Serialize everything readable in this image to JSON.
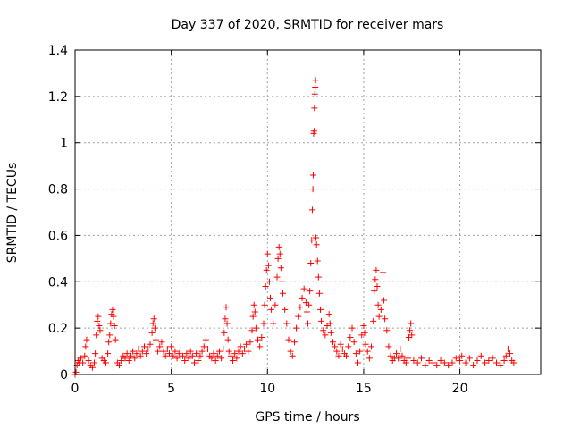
{
  "chart_data": {
    "type": "scatter",
    "title": "Day 337 of 2020, SRMTID for receiver mars",
    "xlabel": "GPS time / hours",
    "ylabel": "SRMTID / TECUs",
    "xlim": [
      0,
      24.2
    ],
    "ylim": [
      0,
      1.4
    ],
    "grid": true,
    "marker": "+",
    "marker_color": "#ff0000",
    "x_ticks": [
      0,
      5,
      10,
      15,
      20
    ],
    "y_ticks": [
      0,
      0.2,
      0.4,
      0.6,
      0.8,
      1,
      1.2,
      1.4
    ],
    "x_tick_labels": [
      "0",
      "5",
      "10",
      "15",
      "20"
    ],
    "y_tick_labels": [
      "0",
      "0.2",
      "0.4",
      "0.6",
      "0.8",
      "1",
      "1.2",
      "1.4"
    ],
    "series": [
      {
        "name": "SRMTID",
        "points": [
          [
            0.0,
            0.0
          ],
          [
            0.05,
            0.01
          ],
          [
            0.1,
            0.04
          ],
          [
            0.15,
            0.06
          ],
          [
            0.2,
            0.05
          ],
          [
            0.3,
            0.07
          ],
          [
            0.4,
            0.05
          ],
          [
            0.5,
            0.08
          ],
          [
            0.55,
            0.12
          ],
          [
            0.6,
            0.15
          ],
          [
            0.7,
            0.06
          ],
          [
            0.8,
            0.04
          ],
          [
            0.9,
            0.03
          ],
          [
            1.0,
            0.05
          ],
          [
            1.05,
            0.09
          ],
          [
            1.1,
            0.17
          ],
          [
            1.15,
            0.23
          ],
          [
            1.2,
            0.25
          ],
          [
            1.25,
            0.21
          ],
          [
            1.3,
            0.19
          ],
          [
            1.4,
            0.07
          ],
          [
            1.5,
            0.06
          ],
          [
            1.6,
            0.05
          ],
          [
            1.7,
            0.09
          ],
          [
            1.75,
            0.14
          ],
          [
            1.8,
            0.17
          ],
          [
            1.85,
            0.22
          ],
          [
            1.9,
            0.26
          ],
          [
            1.95,
            0.28
          ],
          [
            2.0,
            0.25
          ],
          [
            2.05,
            0.21
          ],
          [
            2.1,
            0.15
          ],
          [
            2.2,
            0.05
          ],
          [
            2.3,
            0.04
          ],
          [
            2.4,
            0.06
          ],
          [
            2.5,
            0.08
          ],
          [
            2.6,
            0.07
          ],
          [
            2.7,
            0.09
          ],
          [
            2.8,
            0.06
          ],
          [
            2.9,
            0.08
          ],
          [
            3.0,
            0.1
          ],
          [
            3.1,
            0.07
          ],
          [
            3.2,
            0.09
          ],
          [
            3.3,
            0.11
          ],
          [
            3.4,
            0.08
          ],
          [
            3.5,
            0.1
          ],
          [
            3.6,
            0.12
          ],
          [
            3.7,
            0.09
          ],
          [
            3.8,
            0.11
          ],
          [
            3.9,
            0.13
          ],
          [
            4.0,
            0.18
          ],
          [
            4.05,
            0.22
          ],
          [
            4.1,
            0.24
          ],
          [
            4.15,
            0.2
          ],
          [
            4.2,
            0.15
          ],
          [
            4.3,
            0.1
          ],
          [
            4.4,
            0.12
          ],
          [
            4.5,
            0.14
          ],
          [
            4.6,
            0.1
          ],
          [
            4.7,
            0.08
          ],
          [
            4.8,
            0.11
          ],
          [
            4.9,
            0.09
          ],
          [
            5.0,
            0.12
          ],
          [
            5.1,
            0.08
          ],
          [
            5.2,
            0.1
          ],
          [
            5.3,
            0.07
          ],
          [
            5.4,
            0.09
          ],
          [
            5.5,
            0.11
          ],
          [
            5.6,
            0.08
          ],
          [
            5.7,
            0.06
          ],
          [
            5.8,
            0.09
          ],
          [
            5.9,
            0.07
          ],
          [
            6.0,
            0.1
          ],
          [
            6.1,
            0.08
          ],
          [
            6.2,
            0.05
          ],
          [
            6.3,
            0.09
          ],
          [
            6.4,
            0.06
          ],
          [
            6.5,
            0.08
          ],
          [
            6.6,
            0.1
          ],
          [
            6.7,
            0.12
          ],
          [
            6.8,
            0.15
          ],
          [
            6.9,
            0.11
          ],
          [
            7.0,
            0.08
          ],
          [
            7.1,
            0.07
          ],
          [
            7.2,
            0.09
          ],
          [
            7.3,
            0.06
          ],
          [
            7.4,
            0.08
          ],
          [
            7.5,
            0.1
          ],
          [
            7.6,
            0.07
          ],
          [
            7.7,
            0.11
          ],
          [
            7.75,
            0.18
          ],
          [
            7.8,
            0.24
          ],
          [
            7.85,
            0.29
          ],
          [
            7.9,
            0.22
          ],
          [
            7.95,
            0.15
          ],
          [
            8.0,
            0.1
          ],
          [
            8.1,
            0.08
          ],
          [
            8.2,
            0.06
          ],
          [
            8.3,
            0.09
          ],
          [
            8.4,
            0.07
          ],
          [
            8.5,
            0.1
          ],
          [
            8.6,
            0.12
          ],
          [
            8.7,
            0.09
          ],
          [
            8.8,
            0.11
          ],
          [
            8.9,
            0.13
          ],
          [
            9.0,
            0.1
          ],
          [
            9.1,
            0.14
          ],
          [
            9.2,
            0.19
          ],
          [
            9.25,
            0.25
          ],
          [
            9.3,
            0.3
          ],
          [
            9.35,
            0.27
          ],
          [
            9.4,
            0.2
          ],
          [
            9.5,
            0.15
          ],
          [
            9.6,
            0.12
          ],
          [
            9.7,
            0.16
          ],
          [
            9.8,
            0.22
          ],
          [
            9.85,
            0.3
          ],
          [
            9.9,
            0.38
          ],
          [
            9.95,
            0.45
          ],
          [
            10.0,
            0.52
          ],
          [
            10.05,
            0.47
          ],
          [
            10.1,
            0.4
          ],
          [
            10.15,
            0.33
          ],
          [
            10.2,
            0.28
          ],
          [
            10.3,
            0.22
          ],
          [
            10.4,
            0.3
          ],
          [
            10.5,
            0.42
          ],
          [
            10.55,
            0.5
          ],
          [
            10.6,
            0.55
          ],
          [
            10.65,
            0.52
          ],
          [
            10.7,
            0.46
          ],
          [
            10.75,
            0.4
          ],
          [
            10.8,
            0.35
          ],
          [
            10.9,
            0.28
          ],
          [
            11.0,
            0.22
          ],
          [
            11.1,
            0.15
          ],
          [
            11.2,
            0.1
          ],
          [
            11.3,
            0.08
          ],
          [
            11.4,
            0.14
          ],
          [
            11.5,
            0.2
          ],
          [
            11.6,
            0.25
          ],
          [
            11.7,
            0.29
          ],
          [
            11.8,
            0.33
          ],
          [
            11.9,
            0.37
          ],
          [
            12.0,
            0.31
          ],
          [
            12.05,
            0.27
          ],
          [
            12.1,
            0.22
          ],
          [
            12.15,
            0.3
          ],
          [
            12.2,
            0.36
          ],
          [
            12.25,
            0.48
          ],
          [
            12.3,
            0.58
          ],
          [
            12.33,
            0.71
          ],
          [
            12.36,
            0.8
          ],
          [
            12.38,
            0.86
          ],
          [
            12.4,
            1.04
          ],
          [
            12.42,
            1.05
          ],
          [
            12.44,
            1.15
          ],
          [
            12.46,
            1.21
          ],
          [
            12.48,
            1.24
          ],
          [
            12.5,
            1.27
          ],
          [
            12.52,
            0.59
          ],
          [
            12.55,
            0.56
          ],
          [
            12.6,
            0.49
          ],
          [
            12.65,
            0.42
          ],
          [
            12.7,
            0.35
          ],
          [
            12.75,
            0.28
          ],
          [
            12.8,
            0.23
          ],
          [
            12.9,
            0.19
          ],
          [
            13.0,
            0.17
          ],
          [
            13.1,
            0.21
          ],
          [
            13.2,
            0.26
          ],
          [
            13.25,
            0.22
          ],
          [
            13.3,
            0.18
          ],
          [
            13.4,
            0.14
          ],
          [
            13.5,
            0.12
          ],
          [
            13.6,
            0.1
          ],
          [
            13.7,
            0.08
          ],
          [
            13.8,
            0.13
          ],
          [
            13.9,
            0.11
          ],
          [
            14.0,
            0.09
          ],
          [
            14.1,
            0.08
          ],
          [
            14.2,
            0.12
          ],
          [
            14.3,
            0.16
          ],
          [
            14.4,
            0.2
          ],
          [
            14.5,
            0.14
          ],
          [
            14.6,
            0.09
          ],
          [
            14.7,
            0.05
          ],
          [
            14.8,
            0.1
          ],
          [
            14.9,
            0.17
          ],
          [
            15.0,
            0.21
          ],
          [
            15.05,
            0.18
          ],
          [
            15.1,
            0.13
          ],
          [
            15.2,
            0.1
          ],
          [
            15.3,
            0.07
          ],
          [
            15.4,
            0.12
          ],
          [
            15.5,
            0.23
          ],
          [
            15.55,
            0.36
          ],
          [
            15.6,
            0.41
          ],
          [
            15.65,
            0.45
          ],
          [
            15.7,
            0.38
          ],
          [
            15.75,
            0.3
          ],
          [
            15.8,
            0.25
          ],
          [
            15.9,
            0.28
          ],
          [
            16.0,
            0.44
          ],
          [
            16.05,
            0.32
          ],
          [
            16.1,
            0.24
          ],
          [
            16.2,
            0.19
          ],
          [
            16.3,
            0.12
          ],
          [
            16.4,
            0.08
          ],
          [
            16.5,
            0.06
          ],
          [
            16.6,
            0.07
          ],
          [
            16.7,
            0.09
          ],
          [
            16.8,
            0.07
          ],
          [
            16.9,
            0.11
          ],
          [
            17.0,
            0.08
          ],
          [
            17.1,
            0.06
          ],
          [
            17.2,
            0.05
          ],
          [
            17.3,
            0.07
          ],
          [
            17.35,
            0.16
          ],
          [
            17.4,
            0.19
          ],
          [
            17.45,
            0.22
          ],
          [
            17.5,
            0.17
          ],
          [
            17.6,
            0.06
          ],
          [
            17.8,
            0.05
          ],
          [
            18.0,
            0.07
          ],
          [
            18.2,
            0.04
          ],
          [
            18.4,
            0.06
          ],
          [
            18.6,
            0.05
          ],
          [
            18.8,
            0.04
          ],
          [
            19.0,
            0.06
          ],
          [
            19.2,
            0.05
          ],
          [
            19.4,
            0.04
          ],
          [
            19.6,
            0.05
          ],
          [
            19.8,
            0.07
          ],
          [
            20.0,
            0.06
          ],
          [
            20.1,
            0.08
          ],
          [
            20.3,
            0.05
          ],
          [
            20.5,
            0.07
          ],
          [
            20.7,
            0.04
          ],
          [
            20.9,
            0.06
          ],
          [
            21.1,
            0.08
          ],
          [
            21.3,
            0.05
          ],
          [
            21.5,
            0.06
          ],
          [
            21.7,
            0.07
          ],
          [
            21.9,
            0.05
          ],
          [
            22.1,
            0.04
          ],
          [
            22.3,
            0.06
          ],
          [
            22.4,
            0.08
          ],
          [
            22.5,
            0.11
          ],
          [
            22.6,
            0.09
          ],
          [
            22.7,
            0.06
          ],
          [
            22.8,
            0.05
          ]
        ]
      }
    ]
  }
}
